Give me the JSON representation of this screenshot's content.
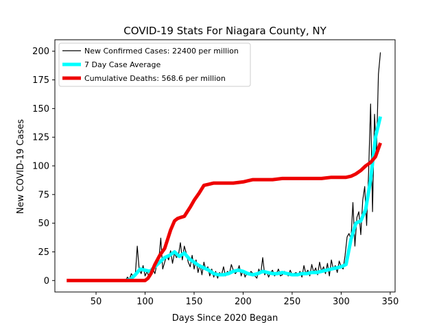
{
  "chart_data": {
    "type": "line",
    "title": "COVID-19 Stats For Niagara County, NY",
    "xlabel": "Days Since 2020 Began",
    "ylabel": "New COVID-19 Cases",
    "xlim": [
      8,
      355
    ],
    "ylim": [
      -10,
      210
    ],
    "xticks": [
      50,
      100,
      150,
      200,
      250,
      300,
      350
    ],
    "yticks": [
      0,
      25,
      50,
      75,
      100,
      125,
      150,
      175,
      200
    ],
    "legend_position": "top-left",
    "series": [
      {
        "name": "New Confirmed Cases: 22400 per million",
        "color": "#000000",
        "style": "thin",
        "x": [
          80,
          82,
          84,
          86,
          88,
          90,
          92,
          94,
          96,
          98,
          100,
          102,
          104,
          106,
          108,
          110,
          112,
          114,
          116,
          118,
          120,
          122,
          124,
          126,
          128,
          130,
          132,
          134,
          136,
          138,
          140,
          142,
          144,
          146,
          148,
          150,
          152,
          154,
          156,
          158,
          160,
          162,
          164,
          166,
          168,
          170,
          172,
          174,
          176,
          178,
          180,
          182,
          184,
          186,
          188,
          190,
          192,
          194,
          196,
          198,
          200,
          202,
          204,
          206,
          208,
          210,
          212,
          214,
          216,
          218,
          220,
          222,
          224,
          226,
          228,
          230,
          232,
          234,
          236,
          238,
          240,
          242,
          244,
          246,
          248,
          250,
          252,
          254,
          256,
          258,
          260,
          262,
          264,
          266,
          268,
          270,
          272,
          274,
          276,
          278,
          280,
          282,
          284,
          286,
          288,
          290,
          292,
          294,
          296,
          298,
          300,
          302,
          304,
          306,
          308,
          310,
          312,
          314,
          316,
          318,
          320,
          322,
          324,
          326,
          328,
          330,
          332,
          334,
          336,
          338,
          340
        ],
        "y": [
          0,
          3,
          1,
          6,
          3,
          4,
          30,
          10,
          6,
          13,
          4,
          8,
          3,
          5,
          10,
          6,
          14,
          18,
          37,
          10,
          16,
          22,
          18,
          26,
          15,
          24,
          20,
          22,
          33,
          18,
          30,
          24,
          16,
          12,
          22,
          10,
          18,
          7,
          14,
          5,
          16,
          9,
          12,
          4,
          10,
          3,
          8,
          2,
          7,
          5,
          12,
          4,
          8,
          6,
          14,
          9,
          6,
          8,
          13,
          4,
          9,
          3,
          7,
          5,
          8,
          6,
          4,
          2,
          10,
          6,
          20,
          5,
          8,
          3,
          7,
          9,
          4,
          6,
          10,
          4,
          5,
          8,
          7,
          4,
          9,
          5,
          6,
          7,
          4,
          8,
          3,
          13,
          6,
          9,
          4,
          14,
          7,
          11,
          5,
          16,
          8,
          12,
          6,
          15,
          4,
          18,
          10,
          13,
          7,
          17,
          12,
          10,
          22,
          38,
          41,
          36,
          68,
          30,
          55,
          60,
          40,
          70,
          82,
          48,
          95,
          154,
          60,
          145,
          110,
          180,
          199
        ]
      },
      {
        "name": "7 Day Case Average",
        "color": "#00ffff",
        "style": "thick",
        "x": [
          80,
          85,
          90,
          95,
          100,
          105,
          110,
          115,
          120,
          125,
          130,
          135,
          140,
          145,
          150,
          155,
          160,
          165,
          170,
          175,
          180,
          185,
          190,
          195,
          200,
          205,
          210,
          215,
          220,
          225,
          230,
          235,
          240,
          245,
          250,
          255,
          260,
          265,
          270,
          275,
          280,
          285,
          290,
          295,
          300,
          305,
          310,
          315,
          320,
          325,
          330,
          335,
          340
        ],
        "y": [
          0,
          1,
          5,
          10,
          9,
          8,
          12,
          16,
          20,
          22,
          25,
          21,
          24,
          19,
          16,
          13,
          11,
          9,
          6,
          5,
          5,
          6,
          8,
          9,
          8,
          6,
          5,
          6,
          8,
          7,
          6,
          6,
          7,
          6,
          5,
          5,
          6,
          6,
          7,
          7,
          8,
          9,
          10,
          11,
          12,
          14,
          36,
          50,
          52,
          62,
          88,
          125,
          143
        ]
      },
      {
        "name": "Cumulative Deaths: 568.6 per million",
        "color": "#ee0000",
        "style": "thick",
        "x": [
          20,
          40,
          60,
          80,
          90,
          95,
          100,
          103,
          106,
          110,
          115,
          120,
          123,
          126,
          130,
          133,
          136,
          140,
          143,
          146,
          150,
          155,
          160,
          165,
          170,
          175,
          180,
          190,
          200,
          205,
          210,
          220,
          230,
          240,
          250,
          260,
          270,
          280,
          290,
          300,
          305,
          310,
          315,
          320,
          325,
          330,
          335,
          340
        ],
        "y": [
          0,
          0,
          0,
          0,
          0,
          0,
          0,
          2,
          6,
          14,
          22,
          28,
          36,
          44,
          52,
          54,
          55,
          56,
          60,
          64,
          70,
          76,
          83,
          84,
          85,
          85,
          85,
          85,
          86,
          87,
          88,
          88,
          88,
          89,
          89,
          89,
          89,
          89,
          90,
          90,
          90,
          91,
          93,
          96,
          100,
          103,
          108,
          120
        ]
      }
    ]
  }
}
